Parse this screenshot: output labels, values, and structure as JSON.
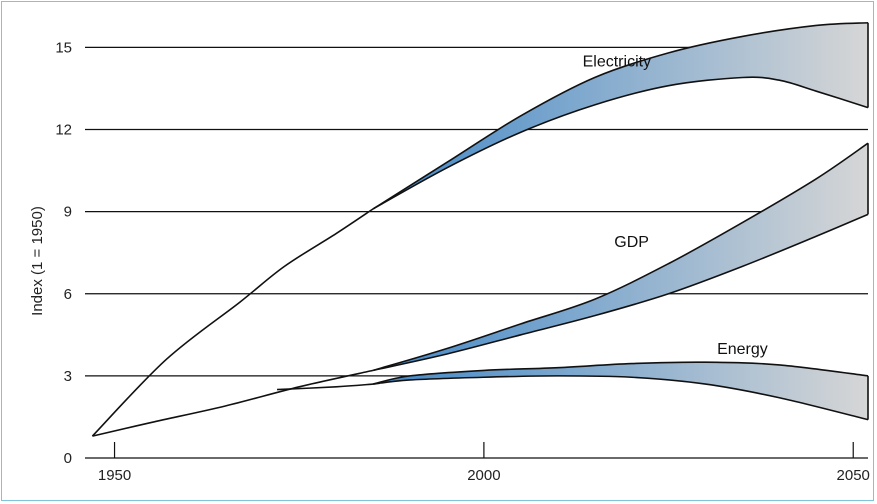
{
  "chart_data": {
    "type": "area",
    "title": "",
    "xlabel": "",
    "ylabel": "Index (1 = 1950)",
    "xlim": [
      1946,
      2052
    ],
    "ylim": [
      0,
      16
    ],
    "x_ticks": [
      "1950",
      "2000",
      "2050"
    ],
    "y_ticks": [
      "0",
      "3",
      "6",
      "9",
      "12",
      "15"
    ],
    "grid": "horizontal",
    "colors": {
      "band_dark": "#3f87c8",
      "band_light": "#d6d6d6",
      "line": "#111111",
      "grid": "#111111"
    },
    "series": [
      {
        "name": "Electricity",
        "label_at": [
          2018,
          14.3
        ],
        "trunk": {
          "x": [
            1947,
            1957,
            1967,
            1973,
            1980,
            1985
          ],
          "y": [
            0.8,
            3.6,
            5.7,
            7.0,
            8.2,
            9.1
          ]
        },
        "band_upper": {
          "x": [
            1985,
            1995,
            2005,
            2015,
            2025,
            2035,
            2045,
            2052
          ],
          "y": [
            9.1,
            10.8,
            12.5,
            13.9,
            14.8,
            15.4,
            15.8,
            15.9
          ]
        },
        "band_lower": {
          "x": [
            1985,
            1995,
            2005,
            2015,
            2025,
            2035,
            2040,
            2045,
            2052
          ],
          "y": [
            9.1,
            10.6,
            11.9,
            12.9,
            13.6,
            13.9,
            13.8,
            13.4,
            12.8
          ]
        }
      },
      {
        "name": "GDP",
        "label_at": [
          2020,
          7.7
        ],
        "trunk": {
          "x": [
            1947,
            1955,
            1965,
            1975,
            1985
          ],
          "y": [
            0.8,
            1.3,
            1.9,
            2.6,
            3.2
          ]
        },
        "band_upper": {
          "x": [
            1985,
            1995,
            2005,
            2015,
            2025,
            2035,
            2045,
            2052
          ],
          "y": [
            3.2,
            4.0,
            4.9,
            5.8,
            7.1,
            8.6,
            10.2,
            11.5
          ]
        },
        "band_lower": {
          "x": [
            1985,
            1995,
            2005,
            2015,
            2025,
            2035,
            2045,
            2052
          ],
          "y": [
            3.2,
            3.8,
            4.5,
            5.2,
            6.0,
            7.0,
            8.1,
            8.9
          ]
        }
      },
      {
        "name": "Energy",
        "label_at": [
          2035,
          3.8
        ],
        "trunk": {
          "x": [
            1972,
            1980,
            1985
          ],
          "y": [
            2.5,
            2.6,
            2.7
          ]
        },
        "band_upper": {
          "x": [
            1985,
            1990,
            2000,
            2010,
            2020,
            2030,
            2040,
            2052
          ],
          "y": [
            2.7,
            3.0,
            3.2,
            3.3,
            3.45,
            3.5,
            3.4,
            3.0
          ]
        },
        "band_lower": {
          "x": [
            1985,
            1990,
            2000,
            2010,
            2020,
            2030,
            2040,
            2052
          ],
          "y": [
            2.7,
            2.85,
            2.95,
            3.0,
            2.95,
            2.7,
            2.2,
            1.4
          ]
        }
      }
    ]
  }
}
